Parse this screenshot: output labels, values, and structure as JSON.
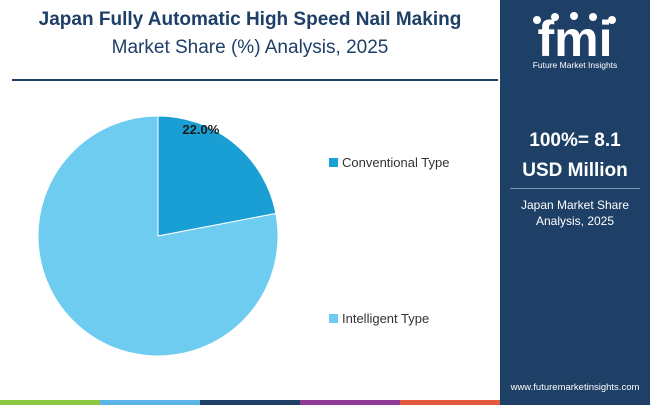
{
  "title": {
    "line1": "Japan Fully Automatic High Speed Nail Making",
    "line2": "Market Share (%) Analysis, 2025"
  },
  "chart_data": {
    "type": "pie",
    "slices": [
      {
        "label": "Conventional Type",
        "value": 22.0,
        "color": "#1a9fd4",
        "data_label": "22.0%"
      },
      {
        "label": "Intelligent Type",
        "value": 78.0,
        "color": "#6dccf0",
        "data_label": ""
      }
    ],
    "legend_position": "right"
  },
  "panel": {
    "logo_letters": "fmi",
    "logo_caption": "Future Market Insights",
    "kpi_line1": "100%= 8.1",
    "kpi_line2": "USD Million",
    "sub_line1": "Japan Market Share",
    "sub_line2": "Analysis, 2025",
    "url": "www.futuremarketinsights.com"
  },
  "colors": {
    "brand_navy": "#1e3f66",
    "bottom_bar": [
      "#8dc63f",
      "#5bb4e5",
      "#1e3f66",
      "#8e3a96",
      "#e25b3c"
    ]
  }
}
